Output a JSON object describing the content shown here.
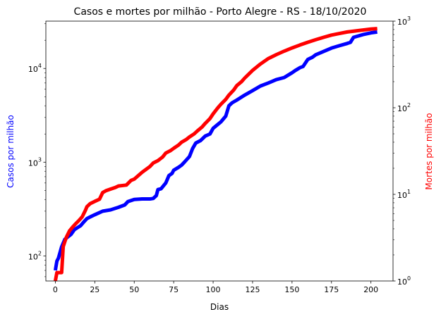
{
  "chart_data": {
    "type": "line",
    "title": "Casos e mortes por milhão - Porto Alegre - RS - 18/10/2020",
    "xlabel": "Dias",
    "ylabel_left": "Casos por milhão",
    "ylabel_right": "Mortes por milhão",
    "xlim": [
      -6,
      214
    ],
    "x_ticks": [
      0,
      25,
      50,
      75,
      100,
      125,
      150,
      175,
      200
    ],
    "y_left": {
      "scale": "log",
      "lim": [
        54,
        32000
      ],
      "tick_labels": [
        "10",
        "10",
        "10"
      ],
      "tick_exponents": [
        "2",
        "3",
        "4"
      ],
      "tick_values": [
        100,
        1000,
        10000
      ]
    },
    "y_right": {
      "scale": "log",
      "lim": [
        1,
        1000
      ],
      "tick_labels": [
        "10",
        "10",
        "10",
        "10"
      ],
      "tick_exponents": [
        "0",
        "1",
        "2",
        "3"
      ],
      "tick_values": [
        1,
        10,
        100,
        1000
      ]
    },
    "grid": false,
    "legend": "none",
    "series": [
      {
        "axis": "left",
        "color": "#0000ff",
        "x": [
          0,
          1,
          2,
          4,
          6,
          8,
          10,
          12,
          14,
          16,
          18,
          20,
          22,
          25,
          30,
          35,
          40,
          44,
          46,
          50,
          55,
          60,
          62,
          64,
          65,
          67,
          70,
          72,
          74,
          75,
          78,
          80,
          82,
          85,
          87,
          89,
          92,
          95,
          98,
          100,
          105,
          108,
          110,
          112,
          115,
          120,
          125,
          130,
          135,
          140,
          145,
          150,
          152,
          155,
          157,
          160,
          163,
          165,
          170,
          175,
          180,
          185,
          187,
          189,
          195,
          200,
          204
        ],
        "y": [
          70,
          88,
          95,
          125,
          150,
          160,
          170,
          190,
          200,
          210,
          230,
          250,
          260,
          275,
          300,
          310,
          330,
          350,
          380,
          400,
          405,
          405,
          410,
          440,
          510,
          520,
          600,
          720,
          760,
          820,
          880,
          930,
          1010,
          1150,
          1400,
          1600,
          1700,
          1900,
          2000,
          2300,
          2700,
          3100,
          4000,
          4300,
          4600,
          5200,
          5800,
          6500,
          7000,
          7600,
          8000,
          9000,
          9500,
          10200,
          10500,
          12500,
          13200,
          14000,
          15200,
          16500,
          17500,
          18500,
          19000,
          21500,
          23000,
          24000,
          24500
        ]
      },
      {
        "axis": "right",
        "color": "#ff0000",
        "x": [
          0,
          1,
          4,
          5,
          7,
          9,
          11,
          13,
          15,
          17,
          19,
          20,
          22,
          25,
          28,
          30,
          32,
          35,
          38,
          40,
          45,
          48,
          50,
          55,
          60,
          62,
          65,
          68,
          70,
          73,
          75,
          78,
          80,
          83,
          85,
          88,
          90,
          93,
          95,
          98,
          100,
          103,
          105,
          108,
          110,
          113,
          115,
          118,
          120,
          125,
          130,
          135,
          140,
          145,
          150,
          155,
          160,
          165,
          170,
          175,
          180,
          185,
          190,
          195,
          200,
          204
        ],
        "y": [
          1.0,
          1.25,
          1.25,
          2.5,
          3.2,
          3.8,
          4.2,
          4.6,
          5.0,
          5.5,
          6.5,
          7.2,
          7.8,
          8.3,
          8.8,
          10.5,
          11.0,
          11.5,
          12.0,
          12.5,
          12.8,
          14.5,
          15.0,
          18.0,
          21.0,
          23.0,
          24.5,
          27.0,
          30.0,
          32.0,
          34.0,
          37.0,
          40.0,
          43.0,
          46.0,
          50.0,
          54.0,
          60.0,
          66.0,
          75.0,
          85.0,
          100.0,
          110.0,
          125.0,
          140.0,
          160.0,
          180.0,
          200.0,
          220.0,
          270.0,
          320.0,
          370.0,
          410.0,
          450.0,
          490.0,
          530.0,
          570.0,
          610.0,
          650.0,
          690.0,
          720.0,
          750.0,
          770.0,
          790.0,
          810.0,
          820.0
        ]
      }
    ]
  }
}
